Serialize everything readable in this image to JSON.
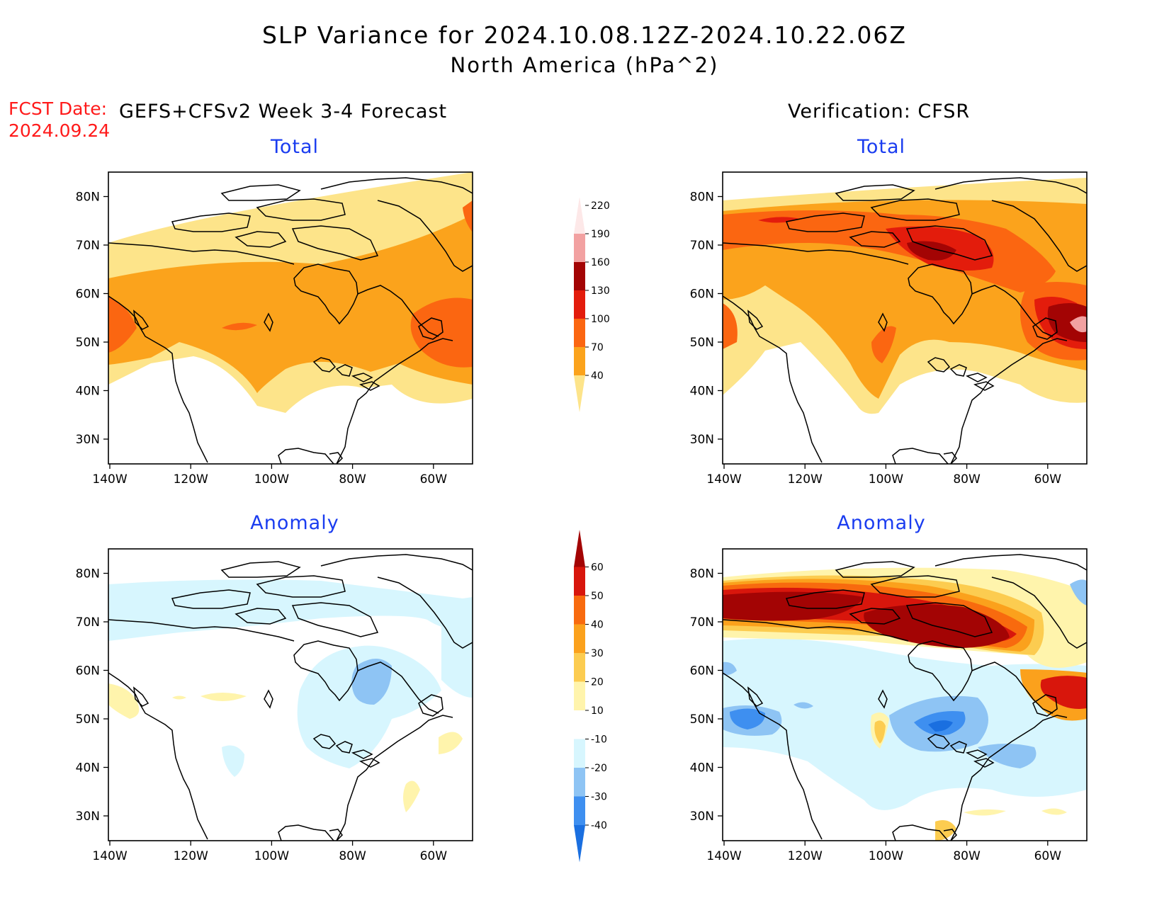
{
  "title": {
    "line1": "SLP Variance for 2024.10.08.12Z-2024.10.22.06Z",
    "line2": "North America (hPa^2)"
  },
  "fcst": {
    "label": "FCST Date:",
    "date": "2024.09.24"
  },
  "columns": {
    "left": "GEFS+CFSv2 Week 3-4 Forecast",
    "right": "Verification: CFSR"
  },
  "panels": [
    {
      "id": "forecast-total",
      "subtitle": "Total"
    },
    {
      "id": "verification-total",
      "subtitle": "Total"
    },
    {
      "id": "forecast-anomaly",
      "subtitle": "Anomaly"
    },
    {
      "id": "verification-anomaly",
      "subtitle": "Anomaly"
    }
  ],
  "axes": {
    "lon_ticks": [
      "140W",
      "120W",
      "100W",
      "80W",
      "60W"
    ],
    "lat_ticks": [
      "30N",
      "40N",
      "50N",
      "60N",
      "70N",
      "80N"
    ]
  },
  "colorbars": {
    "total": {
      "levels": [
        "40",
        "70",
        "100",
        "130",
        "160",
        "190",
        "220"
      ],
      "colors": [
        "#fde48a",
        "#fba31c",
        "#fb6611",
        "#e31c0c",
        "#a30404",
        "#f2a1a1",
        "#fde8e8"
      ]
    },
    "anomaly": {
      "levels": [
        "-40",
        "-30",
        "-20",
        "-10",
        "10",
        "20",
        "30",
        "40",
        "50",
        "60"
      ],
      "colors": [
        "#1a6fe0",
        "#3e8ff0",
        "#8ec4f4",
        "#d7f6fe",
        "#ffffff",
        "#fff4ac",
        "#fccc50",
        "#fba11c",
        "#f86a0e",
        "#d8160c",
        "#a30404"
      ]
    }
  }
}
